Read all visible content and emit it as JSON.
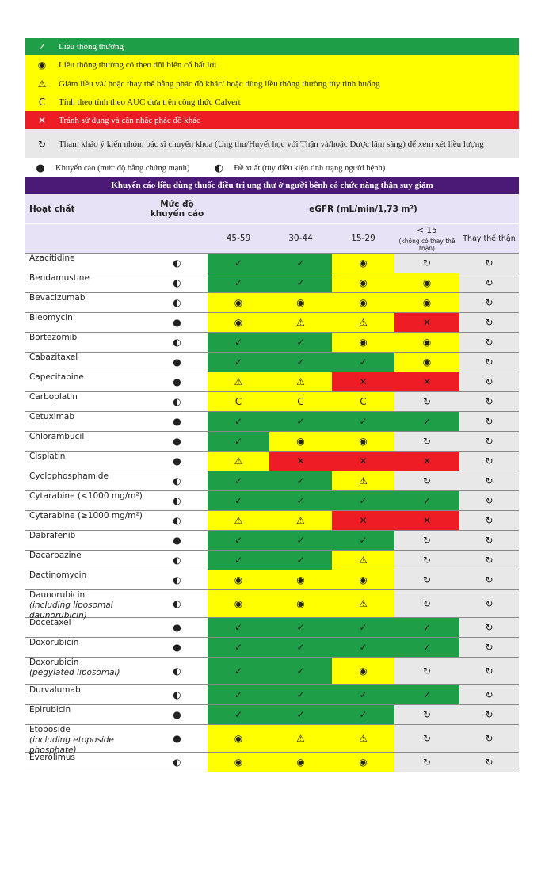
{
  "legend": {
    "items": [
      {
        "symbol": "✓",
        "text": "Liều thông thường",
        "color": "#1f9e48",
        "text_color": "#ffffff"
      },
      {
        "symbol": "◉",
        "text": "Liều thông thường có theo dõi biến cố bất lợi",
        "color": "#ffff00",
        "text_color": "#222222"
      },
      {
        "symbol": "⚠",
        "text": "Giảm liều và/ hoặc thay thế bằng phác đồ khác/ hoặc dùng liều thông thường tùy tình huống",
        "color": "#ffff00",
        "text_color": "#222222"
      },
      {
        "symbol": "C",
        "text": "Tính theo tính theo AUC dựa trên công thức Calvert",
        "color": "#ffff00",
        "text_color": "#222222"
      },
      {
        "symbol": "✕",
        "text": "Tránh sử dụng và cân nhắc phác đồ khác",
        "color": "#ee1c25",
        "text_color": "#ffffff"
      },
      {
        "symbol": "↻",
        "text": "Tham khảo ý kiến nhóm bác sĩ chuyên khoa (Ung thư/Huyết học với Thận và/hoặc Dược lâm sàng) để xem xét liều lượng",
        "color": "#e8e8e8",
        "text_color": "#222222"
      }
    ],
    "levels": [
      {
        "symbol": "●",
        "text": "Khuyến cáo (mức độ bằng chứng mạnh)"
      },
      {
        "symbol": "◐",
        "text": "Đề xuất (tùy điều kiện tình trạng người bệnh)"
      }
    ]
  },
  "table": {
    "title": "Khuyến cáo liều dùng thuốc điều trị ung thư ở người bệnh có chức năng thận suy giảm",
    "headers": {
      "drug": "Hoạt chất",
      "level": "Mức độ khuyến cáo",
      "egfr": "eGFR (mL/min/1,73 m²)",
      "columns": [
        "45-59",
        "30-44",
        "15-29",
        "< 15",
        "Thay thế thận"
      ],
      "lt15_note": "(không có thay thế thận)"
    },
    "rows": [
      {
        "name": "Azacitidine",
        "level": "◐",
        "cells": [
          "✓",
          "✓",
          "◉",
          "↻",
          "↻"
        ]
      },
      {
        "name": "Bendamustine",
        "level": "◐",
        "cells": [
          "✓",
          "✓",
          "◉",
          "◉",
          "↻"
        ]
      },
      {
        "name": "Bevacizumab",
        "level": "◐",
        "cells": [
          "◉",
          "◉",
          "◉",
          "◉",
          "↻"
        ]
      },
      {
        "name": "Bleomycin",
        "level": "●",
        "cells": [
          "◉",
          "⚠",
          "⚠",
          "✕",
          "↻"
        ]
      },
      {
        "name": "Bortezomib",
        "level": "◐",
        "cells": [
          "✓",
          "✓",
          "◉",
          "◉",
          "↻"
        ]
      },
      {
        "name": "Cabazitaxel",
        "level": "●",
        "cells": [
          "✓",
          "✓",
          "✓",
          "◉",
          "↻"
        ]
      },
      {
        "name": "Capecitabine",
        "level": "●",
        "cells": [
          "⚠",
          "⚠",
          "✕",
          "✕",
          "↻"
        ]
      },
      {
        "name": "Carboplatin",
        "level": "◐",
        "cells": [
          "C",
          "C",
          "C",
          "↻",
          "↻"
        ]
      },
      {
        "name": "Cetuximab",
        "level": "●",
        "cells": [
          "✓",
          "✓",
          "✓",
          "✓",
          "↻"
        ]
      },
      {
        "name": "Chlorambucil",
        "level": "●",
        "cells": [
          "✓",
          "◉",
          "◉",
          "↻",
          "↻"
        ]
      },
      {
        "name": "Cisplatin",
        "level": "●",
        "cells": [
          "⚠",
          "✕",
          "✕",
          "✕",
          "↻"
        ]
      },
      {
        "name": "Cyclophosphamide",
        "level": "◐",
        "cells": [
          "✓",
          "✓",
          "⚠",
          "↻",
          "↻"
        ]
      },
      {
        "name": "Cytarabine (<1000 mg/m²)",
        "level": "◐",
        "cells": [
          "✓",
          "✓",
          "✓",
          "✓",
          "↻"
        ]
      },
      {
        "name": "Cytarabine (≥1000 mg/m²)",
        "level": "◐",
        "cells": [
          "⚠",
          "⚠",
          "✕",
          "✕",
          "↻"
        ]
      },
      {
        "name": "Dabrafenib",
        "level": "●",
        "cells": [
          "✓",
          "✓",
          "✓",
          "↻",
          "↻"
        ]
      },
      {
        "name": "Dacarbazine",
        "level": "◐",
        "cells": [
          "✓",
          "✓",
          "⚠",
          "↻",
          "↻"
        ]
      },
      {
        "name": "Dactinomycin",
        "level": "◐",
        "cells": [
          "◉",
          "◉",
          "◉",
          "↻",
          "↻"
        ]
      },
      {
        "name": "Daunorubicin",
        "note": "(including liposomal daunorubicin)",
        "level": "◐",
        "cells": [
          "◉",
          "◉",
          "⚠",
          "↻",
          "↻"
        ]
      },
      {
        "name": "Docetaxel",
        "level": "●",
        "cells": [
          "✓",
          "✓",
          "✓",
          "✓",
          "↻"
        ]
      },
      {
        "name": "Doxorubicin",
        "level": "●",
        "cells": [
          "✓",
          "✓",
          "✓",
          "✓",
          "↻"
        ]
      },
      {
        "name": "Doxorubicin",
        "note": "(pegylated liposomal)",
        "level": "◐",
        "cells": [
          "✓",
          "✓",
          "◉",
          "↻",
          "↻"
        ]
      },
      {
        "name": "Durvalumab",
        "level": "◐",
        "cells": [
          "✓",
          "✓",
          "✓",
          "✓",
          "↻"
        ]
      },
      {
        "name": "Epirubicin",
        "level": "●",
        "cells": [
          "✓",
          "✓",
          "✓",
          "↻",
          "↻"
        ]
      },
      {
        "name": "Etoposide",
        "note": "(including etoposide phosphate)",
        "level": "●",
        "cells": [
          "◉",
          "⚠",
          "⚠",
          "↻",
          "↻"
        ]
      },
      {
        "name": "Everolimus",
        "level": "◐",
        "cells": [
          "◉",
          "◉",
          "◉",
          "↻",
          "↻"
        ]
      }
    ]
  }
}
